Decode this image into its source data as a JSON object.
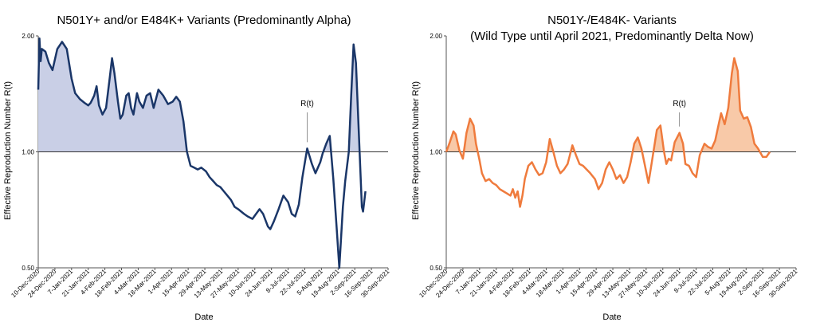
{
  "chart_data": [
    {
      "type": "area",
      "title": "N501Y+ and/or E484K+ Variants (Predominantly Alpha)",
      "xlabel": "Date",
      "ylabel": "Effective Reproduction Number R(t)",
      "yscale": "log",
      "ylim": [
        0.5,
        2.0
      ],
      "y_ticks": [
        "0.50",
        "1.00",
        "2.00"
      ],
      "x_ticks": [
        "10-Dec-2020",
        "24-Dec-2020",
        "7-Jan-2021",
        "21-Jan-2021",
        "4-Feb-2021",
        "18-Feb-2021",
        "4-Mar-2021",
        "18-Mar-2021",
        "1-Apr-2021",
        "15-Apr-2021",
        "29-Apr-2021",
        "13-May-2021",
        "27-May-2021",
        "10-Jun-2021",
        "24-Jun-2021",
        "8-Jul-2021",
        "22-Jul-2021",
        "5-Aug-2021",
        "19-Aug-2021",
        "2-Sep-2021",
        "16-Sep-2021",
        "30-Sep-2021"
      ],
      "reference_line": 1.0,
      "annotation": "R(t)",
      "annotation_date": "24-Jul-2021",
      "line_color": "#1a3668",
      "fill_color": "#c9cfe6",
      "series": [
        {
          "points": [
            [
              "10-Dec-2020",
              1.45
            ],
            [
              "11-Dec-2020",
              1.97
            ],
            [
              "12-Dec-2020",
              1.72
            ],
            [
              "13-Dec-2020",
              1.85
            ],
            [
              "16-Dec-2020",
              1.82
            ],
            [
              "19-Dec-2020",
              1.7
            ],
            [
              "22-Dec-2020",
              1.63
            ],
            [
              "26-Dec-2020",
              1.85
            ],
            [
              "30-Dec-2020",
              1.93
            ],
            [
              "3-Jan-2021",
              1.85
            ],
            [
              "7-Jan-2021",
              1.55
            ],
            [
              "10-Jan-2021",
              1.42
            ],
            [
              "14-Jan-2021",
              1.37
            ],
            [
              "18-Jan-2021",
              1.34
            ],
            [
              "21-Jan-2021",
              1.32
            ],
            [
              "23-Jan-2021",
              1.34
            ],
            [
              "26-Jan-2021",
              1.4
            ],
            [
              "28-Jan-2021",
              1.48
            ],
            [
              "30-Jan-2021",
              1.32
            ],
            [
              "2-Feb-2021",
              1.25
            ],
            [
              "5-Feb-2021",
              1.3
            ],
            [
              "8-Feb-2021",
              1.55
            ],
            [
              "10-Feb-2021",
              1.75
            ],
            [
              "12-Feb-2021",
              1.6
            ],
            [
              "15-Feb-2021",
              1.35
            ],
            [
              "17-Feb-2021",
              1.22
            ],
            [
              "19-Feb-2021",
              1.25
            ],
            [
              "22-Feb-2021",
              1.4
            ],
            [
              "24-Feb-2021",
              1.42
            ],
            [
              "26-Feb-2021",
              1.3
            ],
            [
              "28-Feb-2021",
              1.25
            ],
            [
              "3-Mar-2021",
              1.42
            ],
            [
              "5-Mar-2021",
              1.35
            ],
            [
              "8-Mar-2021",
              1.3
            ],
            [
              "11-Mar-2021",
              1.4
            ],
            [
              "14-Mar-2021",
              1.42
            ],
            [
              "17-Mar-2021",
              1.3
            ],
            [
              "21-Mar-2021",
              1.45
            ],
            [
              "25-Mar-2021",
              1.4
            ],
            [
              "29-Mar-2021",
              1.33
            ],
            [
              "2-Apr-2021",
              1.35
            ],
            [
              "5-Apr-2021",
              1.39
            ],
            [
              "8-Apr-2021",
              1.35
            ],
            [
              "11-Apr-2021",
              1.2
            ],
            [
              "14-Apr-2021",
              1.0
            ],
            [
              "17-Apr-2021",
              0.92
            ],
            [
              "20-Apr-2021",
              0.91
            ],
            [
              "23-Apr-2021",
              0.9
            ],
            [
              "26-Apr-2021",
              0.91
            ],
            [
              "30-Apr-2021",
              0.89
            ],
            [
              "3-May-2021",
              0.86
            ],
            [
              "6-May-2021",
              0.84
            ],
            [
              "9-May-2021",
              0.82
            ],
            [
              "12-May-2021",
              0.81
            ],
            [
              "15-May-2021",
              0.79
            ],
            [
              "18-May-2021",
              0.77
            ],
            [
              "21-May-2021",
              0.75
            ],
            [
              "24-May-2021",
              0.72
            ],
            [
              "27-May-2021",
              0.71
            ],
            [
              "1-Jun-2021",
              0.69
            ],
            [
              "4-Jun-2021",
              0.68
            ],
            [
              "8-Jun-2021",
              0.67
            ],
            [
              "11-Jun-2021",
              0.69
            ],
            [
              "14-Jun-2021",
              0.71
            ],
            [
              "17-Jun-2021",
              0.69
            ],
            [
              "21-Jun-2021",
              0.64
            ],
            [
              "23-Jun-2021",
              0.63
            ],
            [
              "26-Jun-2021",
              0.66
            ],
            [
              "30-Jun-2021",
              0.71
            ],
            [
              "4-Jul-2021",
              0.77
            ],
            [
              "8-Jul-2021",
              0.74
            ],
            [
              "11-Jul-2021",
              0.69
            ],
            [
              "14-Jul-2021",
              0.68
            ],
            [
              "17-Jul-2021",
              0.73
            ],
            [
              "20-Jul-2021",
              0.86
            ],
            [
              "24-Jul-2021",
              1.02
            ],
            [
              "28-Jul-2021",
              0.93
            ],
            [
              "31-Jul-2021",
              0.88
            ],
            [
              "4-Aug-2021",
              0.94
            ],
            [
              "6-Aug-2021",
              0.99
            ],
            [
              "9-Aug-2021",
              1.05
            ],
            [
              "12-Aug-2021",
              1.1
            ],
            [
              "15-Aug-2021",
              0.85
            ],
            [
              "18-Aug-2021",
              0.62
            ],
            [
              "20-Aug-2021",
              0.5
            ],
            [
              "23-Aug-2021",
              0.72
            ],
            [
              "25-Aug-2021",
              0.84
            ],
            [
              "28-Aug-2021",
              1.0
            ],
            [
              "30-Aug-2021",
              1.4
            ],
            [
              "1-Sep-2021",
              1.9
            ],
            [
              "3-Sep-2021",
              1.7
            ],
            [
              "5-Sep-2021",
              1.2
            ],
            [
              "8-Sep-2021",
              0.72
            ],
            [
              "9-Sep-2021",
              0.7
            ],
            [
              "11-Sep-2021",
              0.79
            ]
          ]
        }
      ]
    },
    {
      "type": "area",
      "title": "N501Y-/E484K- Variants\n(Wild Type until April 2021, Predominantly Delta Now)",
      "xlabel": "Date",
      "ylabel": "Effective Reproduction Number R(t)",
      "yscale": "log",
      "ylim": [
        0.5,
        2.0
      ],
      "y_ticks": [
        "0.50",
        "1.00",
        "2.00"
      ],
      "x_ticks": [
        "10-Dec-2020",
        "24-Dec-2020",
        "7-Jan-2021",
        "21-Jan-2021",
        "4-Feb-2021",
        "18-Feb-2021",
        "4-Mar-2021",
        "18-Mar-2021",
        "1-Apr-2021",
        "15-Apr-2021",
        "29-Apr-2021",
        "13-May-2021",
        "27-May-2021",
        "10-Jun-2021",
        "24-Jun-2021",
        "8-Jul-2021",
        "22-Jul-2021",
        "5-Aug-2021",
        "19-Aug-2021",
        "2-Sep-2021",
        "16-Sep-2021",
        "30-Sep-2021"
      ],
      "reference_line": 1.0,
      "annotation": "R(t)",
      "annotation_date": "24-Jun-2021",
      "line_color": "#ef7b3d",
      "fill_color": "#f8c9a8",
      "series": [
        {
          "points": [
            [
              "10-Dec-2020",
              1.0
            ],
            [
              "13-Dec-2020",
              1.06
            ],
            [
              "16-Dec-2020",
              1.13
            ],
            [
              "18-Dec-2020",
              1.11
            ],
            [
              "21-Dec-2020",
              1.01
            ],
            [
              "24-Dec-2020",
              0.96
            ],
            [
              "27-Dec-2020",
              1.12
            ],
            [
              "30-Dec-2020",
              1.22
            ],
            [
              "2-Jan-2021",
              1.17
            ],
            [
              "4-Jan-2021",
              1.05
            ],
            [
              "7-Jan-2021",
              0.95
            ],
            [
              "9-Jan-2021",
              0.88
            ],
            [
              "12-Jan-2021",
              0.84
            ],
            [
              "15-Jan-2021",
              0.85
            ],
            [
              "18-Jan-2021",
              0.83
            ],
            [
              "21-Jan-2021",
              0.82
            ],
            [
              "24-Jan-2021",
              0.8
            ],
            [
              "27-Jan-2021",
              0.79
            ],
            [
              "30-Jan-2021",
              0.78
            ],
            [
              "2-Feb-2021",
              0.77
            ],
            [
              "4-Feb-2021",
              0.8
            ],
            [
              "6-Feb-2021",
              0.76
            ],
            [
              "8-Feb-2021",
              0.79
            ],
            [
              "10-Feb-2021",
              0.72
            ],
            [
              "12-Feb-2021",
              0.77
            ],
            [
              "14-Feb-2021",
              0.85
            ],
            [
              "17-Feb-2021",
              0.92
            ],
            [
              "20-Feb-2021",
              0.94
            ],
            [
              "23-Feb-2021",
              0.9
            ],
            [
              "26-Feb-2021",
              0.87
            ],
            [
              "1-Mar-2021",
              0.88
            ],
            [
              "4-Mar-2021",
              0.94
            ],
            [
              "7-Mar-2021",
              1.08
            ],
            [
              "10-Mar-2021",
              1.0
            ],
            [
              "13-Mar-2021",
              0.92
            ],
            [
              "16-Mar-2021",
              0.88
            ],
            [
              "19-Mar-2021",
              0.9
            ],
            [
              "22-Mar-2021",
              0.93
            ],
            [
              "26-Mar-2021",
              1.04
            ],
            [
              "29-Mar-2021",
              0.98
            ],
            [
              "1-Apr-2021",
              0.93
            ],
            [
              "4-Apr-2021",
              0.92
            ],
            [
              "7-Apr-2021",
              0.9
            ],
            [
              "10-Apr-2021",
              0.88
            ],
            [
              "14-Apr-2021",
              0.85
            ],
            [
              "17-Apr-2021",
              0.8
            ],
            [
              "20-Apr-2021",
              0.83
            ],
            [
              "23-Apr-2021",
              0.9
            ],
            [
              "26-Apr-2021",
              0.94
            ],
            [
              "29-Apr-2021",
              0.9
            ],
            [
              "2-May-2021",
              0.85
            ],
            [
              "5-May-2021",
              0.87
            ],
            [
              "8-May-2021",
              0.83
            ],
            [
              "11-May-2021",
              0.86
            ],
            [
              "14-May-2021",
              0.94
            ],
            [
              "17-May-2021",
              1.05
            ],
            [
              "20-May-2021",
              1.09
            ],
            [
              "23-May-2021",
              1.02
            ],
            [
              "26-May-2021",
              0.92
            ],
            [
              "29-May-2021",
              0.83
            ],
            [
              "1-Jun-2021",
              0.95
            ],
            [
              "5-Jun-2021",
              1.14
            ],
            [
              "8-Jun-2021",
              1.17
            ],
            [
              "11-Jun-2021",
              1.0
            ],
            [
              "13-Jun-2021",
              0.93
            ],
            [
              "15-Jun-2021",
              0.96
            ],
            [
              "17-Jun-2021",
              0.95
            ],
            [
              "20-Jun-2021",
              1.06
            ],
            [
              "24-Jun-2021",
              1.12
            ],
            [
              "27-Jun-2021",
              1.05
            ],
            [
              "29-Jun-2021",
              0.93
            ],
            [
              "2-Jul-2021",
              0.92
            ],
            [
              "5-Jul-2021",
              0.88
            ],
            [
              "8-Jul-2021",
              0.86
            ],
            [
              "11-Jul-2021",
              0.98
            ],
            [
              "15-Jul-2021",
              1.05
            ],
            [
              "18-Jul-2021",
              1.03
            ],
            [
              "21-Jul-2021",
              1.02
            ],
            [
              "24-Jul-2021",
              1.07
            ],
            [
              "27-Jul-2021",
              1.18
            ],
            [
              "29-Jul-2021",
              1.26
            ],
            [
              "1-Aug-2021",
              1.18
            ],
            [
              "4-Aug-2021",
              1.3
            ],
            [
              "7-Aug-2021",
              1.6
            ],
            [
              "9-Aug-2021",
              1.75
            ],
            [
              "12-Aug-2021",
              1.62
            ],
            [
              "14-Aug-2021",
              1.28
            ],
            [
              "17-Aug-2021",
              1.22
            ],
            [
              "20-Aug-2021",
              1.23
            ],
            [
              "23-Aug-2021",
              1.16
            ],
            [
              "26-Aug-2021",
              1.05
            ],
            [
              "29-Aug-2021",
              1.02
            ],
            [
              "2-Sep-2021",
              0.97
            ],
            [
              "5-Sep-2021",
              0.97
            ],
            [
              "8-Sep-2021",
              1.0
            ]
          ]
        }
      ]
    }
  ]
}
